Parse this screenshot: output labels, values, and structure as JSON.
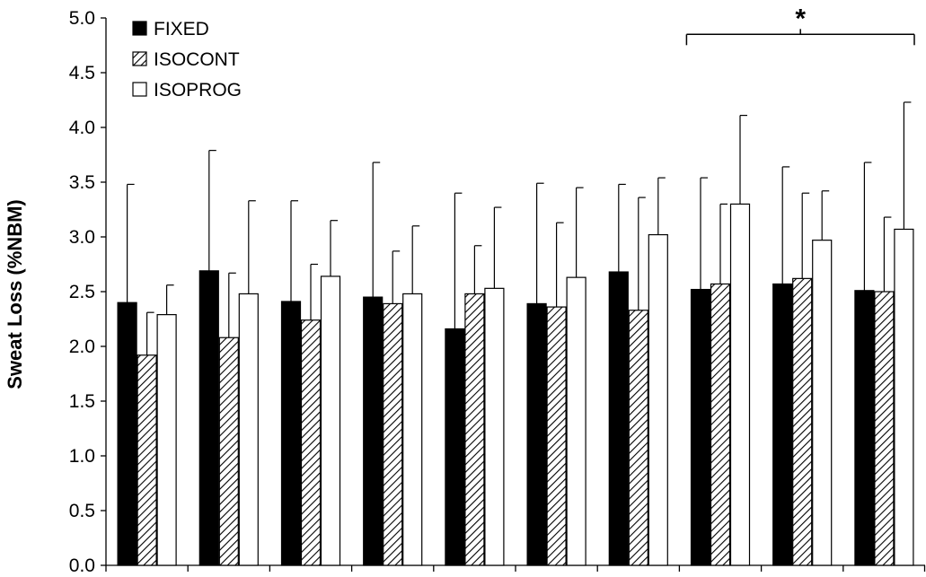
{
  "chart_data": {
    "type": "bar",
    "title": "",
    "xlabel": "",
    "ylabel": "Sweat Loss (%NBM)",
    "ylim": [
      0,
      5.0
    ],
    "yticks": [
      "0.0",
      "0.5",
      "1.0",
      "1.5",
      "2.0",
      "2.5",
      "3.0",
      "3.5",
      "4.0",
      "4.5",
      "5.0"
    ],
    "grid": false,
    "legend_position": "top-left",
    "group_count": 10,
    "series": [
      {
        "name": "FIXED",
        "fill": "solid-black",
        "values": [
          2.4,
          2.69,
          2.41,
          2.45,
          2.16,
          2.39,
          2.68,
          2.52,
          2.57,
          2.51
        ],
        "error": [
          1.08,
          1.1,
          0.92,
          1.23,
          1.24,
          1.1,
          0.8,
          1.02,
          1.07,
          1.17
        ]
      },
      {
        "name": "ISOCONT",
        "fill": "diagonal-hatch",
        "values": [
          1.92,
          2.08,
          2.24,
          2.39,
          2.48,
          2.36,
          2.33,
          2.57,
          2.62,
          2.5
        ],
        "error": [
          0.39,
          0.59,
          0.51,
          0.48,
          0.44,
          0.77,
          1.03,
          0.73,
          0.78,
          0.68
        ]
      },
      {
        "name": "ISOPROG",
        "fill": "white",
        "values": [
          2.29,
          2.48,
          2.64,
          2.48,
          2.53,
          2.63,
          3.02,
          3.3,
          2.97,
          3.07
        ],
        "error": [
          0.27,
          0.85,
          0.51,
          0.62,
          0.74,
          0.82,
          0.52,
          0.81,
          0.45,
          1.16
        ]
      }
    ],
    "annotations": [
      {
        "text": "*",
        "bracket_from_group": 7,
        "bracket_to_group": 9,
        "level": 4.85
      }
    ]
  }
}
